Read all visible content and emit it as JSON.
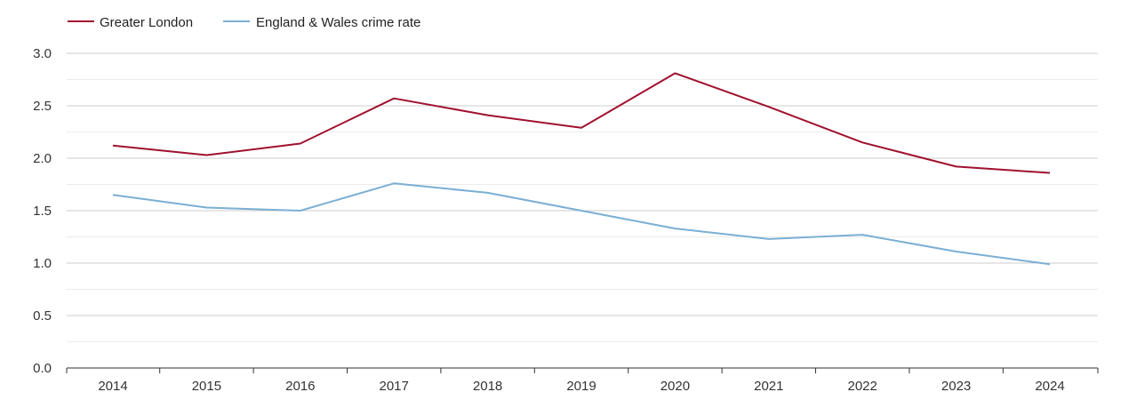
{
  "chart_data": {
    "type": "line",
    "title": "",
    "xlabel": "",
    "ylabel": "",
    "x": [
      "2014",
      "2015",
      "2016",
      "2017",
      "2018",
      "2019",
      "2020",
      "2021",
      "2022",
      "2023",
      "2024"
    ],
    "ylim": [
      0,
      3.0
    ],
    "y_ticks": [
      "0.0",
      "0.5",
      "1.0",
      "1.5",
      "2.0",
      "2.5",
      "3.0"
    ],
    "grid": true,
    "legend_position": "top-left",
    "series": [
      {
        "name": "Greater London",
        "color": "#a0112f",
        "values": [
          2.12,
          2.03,
          2.14,
          2.57,
          2.41,
          2.29,
          2.81,
          2.49,
          2.15,
          1.92,
          1.86
        ]
      },
      {
        "name": "England & Wales crime rate",
        "color": "#7bafd4",
        "values": [
          1.65,
          1.53,
          1.5,
          1.76,
          1.67,
          1.5,
          1.33,
          1.23,
          1.27,
          1.11,
          0.99
        ]
      }
    ]
  }
}
